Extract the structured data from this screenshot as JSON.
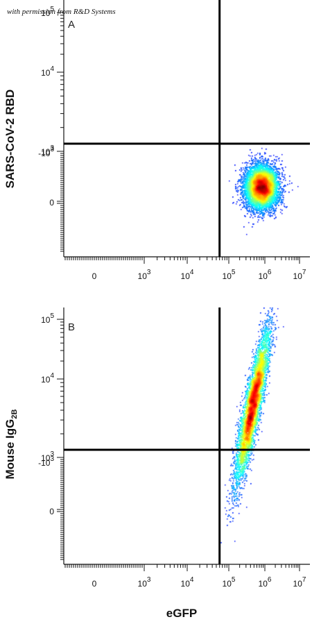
{
  "watermark": "with permission from R&D Systems",
  "chart_data": [
    {
      "type": "scatter",
      "panel_label": "A",
      "ylabel": "SARS-CoV-2 RBD",
      "xlabel": "",
      "x_scale": "biexponential",
      "y_scale": "biexponential",
      "x_ticks": [
        {
          "value": 0,
          "base": "0",
          "exp": ""
        },
        {
          "value": 1000,
          "base": "10",
          "exp": "3"
        },
        {
          "value": 10000,
          "base": "10",
          "exp": "4"
        },
        {
          "value": 100000,
          "base": "10",
          "exp": "5"
        },
        {
          "value": 1000000,
          "base": "10",
          "exp": "6"
        },
        {
          "value": 10000000,
          "base": "10",
          "exp": "7"
        }
      ],
      "y_ticks": [
        {
          "value": -1000,
          "base": "-10",
          "exp": "3"
        },
        {
          "value": 0,
          "base": "0",
          "exp": ""
        },
        {
          "value": 1000,
          "base": "10",
          "exp": "3"
        },
        {
          "value": 10000,
          "base": "10",
          "exp": "4"
        },
        {
          "value": 100000,
          "base": "10",
          "exp": "5"
        }
      ],
      "gate": {
        "x": 60000,
        "y": 1250
      },
      "populations": [
        {
          "x_center": 800000,
          "y_center": 300,
          "x_log_spread": 0.22,
          "y_spread": 0.12,
          "count": 9000,
          "shape": "round"
        }
      ]
    },
    {
      "type": "scatter",
      "panel_label": "B",
      "ylabel_main": "Mouse IgG",
      "ylabel_sub": "2B",
      "xlabel": "eGFP",
      "x_scale": "biexponential",
      "y_scale": "biexponential",
      "x_ticks": [
        {
          "value": 0,
          "base": "0",
          "exp": ""
        },
        {
          "value": 1000,
          "base": "10",
          "exp": "3"
        },
        {
          "value": 10000,
          "base": "10",
          "exp": "4"
        },
        {
          "value": 100000,
          "base": "10",
          "exp": "5"
        },
        {
          "value": 1000000,
          "base": "10",
          "exp": "6"
        },
        {
          "value": 10000000,
          "base": "10",
          "exp": "7"
        }
      ],
      "y_ticks": [
        {
          "value": -1000,
          "base": "-10",
          "exp": "3"
        },
        {
          "value": 0,
          "base": "0",
          "exp": ""
        },
        {
          "value": 1000,
          "base": "10",
          "exp": "3"
        },
        {
          "value": 10000,
          "base": "10",
          "exp": "4"
        },
        {
          "value": 100000,
          "base": "10",
          "exp": "5"
        }
      ],
      "gate": {
        "x": 60000,
        "y": 1250
      },
      "populations": [
        {
          "x_center": 450000,
          "y_center": 4500,
          "x_log_spread": 0.22,
          "y_spread": 0.3,
          "count": 7000,
          "shape": "diagonal"
        }
      ]
    }
  ]
}
